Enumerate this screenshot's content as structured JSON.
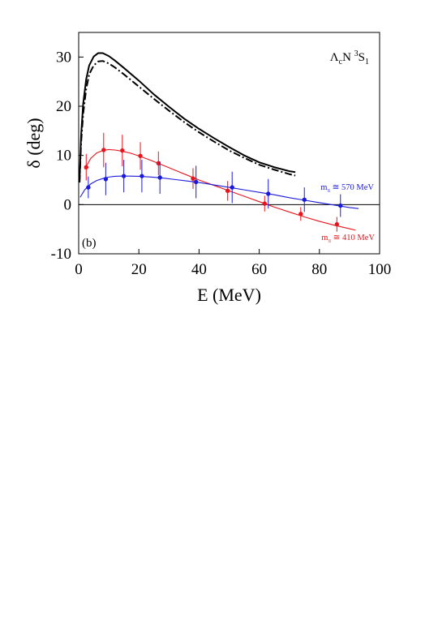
{
  "chart_data": {
    "type": "line",
    "panel_label": "(b)",
    "title_parts": {
      "lambda": "Λ",
      "lambda_sub": "c",
      "n": "N ",
      "sup": "3",
      "s": "S",
      "s_sub": "1"
    },
    "xlabel": "E (MeV)",
    "ylabel": "δ (deg)",
    "xlim": [
      0,
      100
    ],
    "ylim": [
      -10,
      35
    ],
    "xticks": [
      0,
      20,
      40,
      60,
      80,
      100
    ],
    "yticks": [
      -10,
      0,
      10,
      20,
      30
    ],
    "zero_line": true,
    "colors": {
      "red": "#e8141b",
      "blue": "#1a1adc",
      "black": "#000000"
    },
    "curves": [
      {
        "style": "solid",
        "color": "#000000",
        "x": [
          0.3,
          0.8,
          1.5,
          2.5,
          3.5,
          5,
          6.5,
          8,
          10,
          12,
          15,
          20,
          25,
          30,
          35,
          40,
          45,
          50,
          55,
          60,
          65,
          70,
          72
        ],
        "y": [
          5,
          14,
          20.5,
          25.5,
          28.3,
          30.1,
          30.8,
          30.8,
          30.2,
          29.3,
          27.8,
          25.2,
          22.4,
          19.9,
          17.5,
          15.4,
          13.5,
          11.7,
          10.0,
          8.6,
          7.6,
          6.8,
          6.6
        ]
      },
      {
        "style": "dash-dot",
        "color": "#000000",
        "x": [
          0.3,
          0.8,
          1.5,
          2.5,
          3.5,
          5,
          6.5,
          8,
          10,
          12,
          15,
          20,
          25,
          30,
          35,
          40,
          45,
          50,
          55,
          60,
          65,
          70,
          72
        ],
        "y": [
          4.5,
          12.5,
          18.5,
          23.5,
          26.5,
          28.3,
          29.1,
          29.2,
          28.7,
          27.9,
          26.5,
          24.0,
          21.5,
          19.1,
          16.8,
          14.7,
          12.8,
          11.0,
          9.5,
          8.1,
          7.1,
          6.2,
          5.9
        ]
      }
    ],
    "series": [
      {
        "name": "m_π ≅ 410 MeV",
        "label_main": "m",
        "label_sub": "π",
        "label_rest": " ≅ 410 MeV",
        "color": "#e8141b",
        "points": [
          {
            "x": 2.5,
            "y": 7.6,
            "err": 2.7
          },
          {
            "x": 8.3,
            "y": 11.1,
            "err": 3.5
          },
          {
            "x": 14.5,
            "y": 11.0,
            "err": 3.2
          },
          {
            "x": 20.5,
            "y": 9.9,
            "err": 2.8
          },
          {
            "x": 26.5,
            "y": 8.4,
            "err": 2.4
          },
          {
            "x": 38.0,
            "y": 5.3,
            "err": 2.1
          },
          {
            "x": 49.5,
            "y": 2.8,
            "err": 2.0
          },
          {
            "x": 61.8,
            "y": 0.2,
            "err": 1.6
          },
          {
            "x": 73.8,
            "y": -1.9,
            "err": 1.4
          },
          {
            "x": 85.8,
            "y": -4.0,
            "err": 1.5
          }
        ],
        "fit": {
          "x": [
            2,
            4,
            6,
            8,
            10,
            12,
            14,
            17,
            20,
            24,
            28,
            32,
            36,
            40,
            45,
            50,
            55,
            60,
            65,
            70,
            75,
            80,
            85,
            90,
            92
          ],
          "y": [
            7.2,
            9.4,
            10.5,
            11.0,
            11.2,
            11.1,
            10.9,
            10.5,
            9.9,
            9.0,
            8.0,
            7.0,
            6.0,
            5.0,
            3.9,
            2.8,
            1.7,
            0.6,
            -0.5,
            -1.5,
            -2.5,
            -3.4,
            -4.2,
            -4.9,
            -5.2
          ]
        }
      },
      {
        "name": "m_π ≅ 570 MeV",
        "label_main": "m",
        "label_sub": "π",
        "label_rest": " ≅ 570 MeV",
        "color": "#1a1adc",
        "points": [
          {
            "x": 3.2,
            "y": 3.5,
            "err": 2.2
          },
          {
            "x": 9.0,
            "y": 5.2,
            "err": 3.3
          },
          {
            "x": 15.0,
            "y": 5.8,
            "err": 3.3
          },
          {
            "x": 21.0,
            "y": 5.8,
            "err": 3.3
          },
          {
            "x": 27.0,
            "y": 5.5,
            "err": 3.3
          },
          {
            "x": 39.0,
            "y": 4.6,
            "err": 3.3
          },
          {
            "x": 51.0,
            "y": 3.5,
            "err": 3.2
          },
          {
            "x": 63.0,
            "y": 2.2,
            "err": 3.0
          },
          {
            "x": 75.0,
            "y": 1.0,
            "err": 2.5
          },
          {
            "x": 87.0,
            "y": -0.2,
            "err": 2.3
          }
        ],
        "fit": {
          "x": [
            0.5,
            2,
            4,
            6,
            8,
            10,
            12,
            14,
            17,
            20,
            24,
            28,
            32,
            36,
            40,
            45,
            50,
            55,
            60,
            65,
            70,
            75,
            80,
            85,
            90,
            93
          ],
          "y": [
            1.5,
            3.0,
            4.2,
            4.9,
            5.3,
            5.6,
            5.75,
            5.8,
            5.8,
            5.75,
            5.6,
            5.4,
            5.1,
            4.8,
            4.5,
            4.0,
            3.5,
            3.0,
            2.5,
            2.0,
            1.4,
            0.9,
            0.4,
            -0.1,
            -0.6,
            -0.8
          ]
        }
      }
    ]
  }
}
